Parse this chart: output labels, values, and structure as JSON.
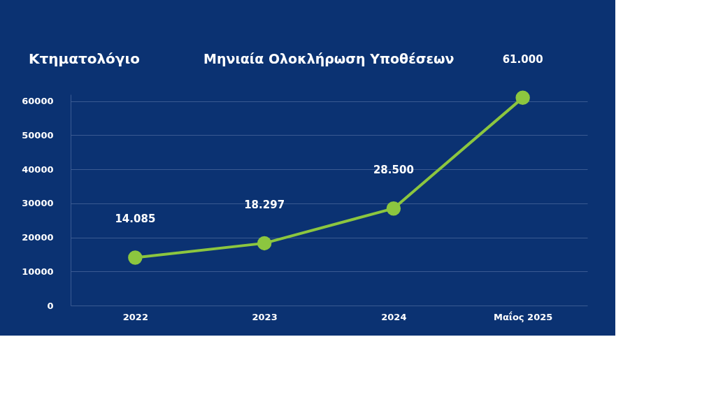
{
  "chart_data": {
    "type": "line",
    "title": "Μηνιαία Ολοκλήρωση Υποθέσεων",
    "annotations": [
      "Κτηματολόγιο"
    ],
    "categories": [
      "2022",
      "2023",
      "2024",
      "Μαΐος 2025"
    ],
    "series": [
      {
        "color": "#8cc63f",
        "values": [
          14085,
          18297,
          28500,
          61000
        ],
        "value_labels": [
          "14.085",
          "18.297",
          "28.500",
          "61.000"
        ]
      }
    ],
    "ylim": [
      0,
      62000
    ],
    "yticks": [
      0,
      10000,
      20000,
      30000,
      40000,
      50000,
      60000
    ],
    "grid": "y",
    "marker": "circle",
    "line_style": "solid",
    "legend": false
  }
}
